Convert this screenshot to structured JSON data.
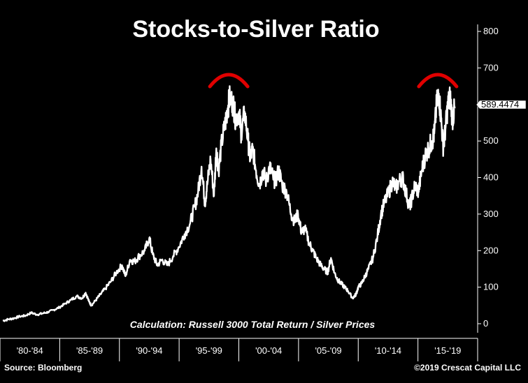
{
  "chart_data": {
    "type": "line",
    "title": "Stocks-to-Silver Ratio",
    "annotation": "Calculation: Russell 3000 Total Return / Silver Prices",
    "source": "Source: Bloomberg",
    "copyright": "©2019 Crescat Capital LLC",
    "last_value_label": "589.4474",
    "last_value": 589.4474,
    "ylim": [
      -20,
      820
    ],
    "xlim": [
      1980,
      2020.4
    ],
    "y_ticks": [
      "0",
      "100",
      "200",
      "300",
      "400",
      "500",
      "600",
      "700",
      "800"
    ],
    "categories": [
      "'80-'84",
      "'85-'89",
      "'90-'94",
      "'95-'99",
      "'00-'04",
      "'05-'09",
      "'10-'14",
      "'15-'19"
    ],
    "highlight_peaks": [
      1999.9,
      2018.3
    ],
    "colors": {
      "background": "#000000",
      "line": "#ffffff",
      "arc": "#e00000",
      "axis": "#ffffff"
    },
    "series": [
      {
        "name": "Stocks-to-Silver Ratio",
        "x": [
          1980.0,
          1980.5,
          1981.0,
          1981.5,
          1982.0,
          1982.5,
          1983.0,
          1983.5,
          1984.0,
          1984.5,
          1985.0,
          1985.5,
          1986.0,
          1986.5,
          1987.0,
          1987.3,
          1987.6,
          1987.8,
          1988.2,
          1988.6,
          1989.0,
          1989.5,
          1990.0,
          1990.5,
          1990.8,
          1991.2,
          1991.6,
          1992.0,
          1992.5,
          1992.9,
          1993.2,
          1993.6,
          1994.0,
          1994.5,
          1995.0,
          1995.5,
          1996.0,
          1996.5,
          1996.9,
          1997.2,
          1997.5,
          1997.8,
          1998.0,
          1998.3,
          1998.6,
          1998.8,
          1999.0,
          1999.3,
          1999.6,
          1999.8,
          2000.0,
          2000.3,
          2000.5,
          2000.8,
          2001.0,
          2001.3,
          2001.6,
          2001.8,
          2002.0,
          2002.3,
          2002.6,
          2002.9,
          2003.2,
          2003.5,
          2003.8,
          2004.0,
          2004.3,
          2004.6,
          2005.0,
          2005.4,
          2005.7,
          2006.0,
          2006.3,
          2006.6,
          2007.0,
          2007.3,
          2007.6,
          2008.0,
          2008.3,
          2008.6,
          2008.9,
          2009.2,
          2009.5,
          2009.8,
          2010.1,
          2010.4,
          2010.8,
          2011.1,
          2011.3,
          2011.6,
          2011.9,
          2012.2,
          2012.6,
          2013.0,
          2013.3,
          2013.6,
          2014.0,
          2014.3,
          2014.6,
          2014.9,
          2015.2,
          2015.5,
          2015.8,
          2016.0,
          2016.3,
          2016.6,
          2016.9,
          2017.2,
          2017.5,
          2017.8,
          2018.0,
          2018.2,
          2018.4,
          2018.6,
          2018.8,
          2019.0,
          2019.2,
          2019.4,
          2019.6,
          2019.8
        ],
        "y": [
          8,
          12,
          15,
          20,
          22,
          30,
          25,
          28,
          32,
          38,
          45,
          55,
          65,
          75,
          70,
          85,
          60,
          50,
          65,
          80,
          95,
          115,
          140,
          160,
          130,
          175,
          170,
          185,
          200,
          235,
          190,
          160,
          175,
          160,
          185,
          210,
          245,
          275,
          320,
          360,
          430,
          330,
          380,
          450,
          350,
          480,
          420,
          500,
          550,
          590,
          620,
          600,
          560,
          580,
          520,
          580,
          500,
          450,
          480,
          420,
          380,
          420,
          390,
          430,
          400,
          390,
          420,
          380,
          360,
          300,
          280,
          300,
          250,
          260,
          220,
          200,
          180,
          160,
          150,
          140,
          180,
          140,
          120,
          110,
          100,
          90,
          70,
          80,
          100,
          110,
          130,
          150,
          180,
          240,
          300,
          330,
          360,
          390,
          370,
          390,
          400,
          360,
          320,
          340,
          380,
          360,
          420,
          460,
          480,
          500,
          520,
          600,
          630,
          560,
          480,
          540,
          600,
          620,
          560,
          589.4474
        ]
      }
    ]
  }
}
